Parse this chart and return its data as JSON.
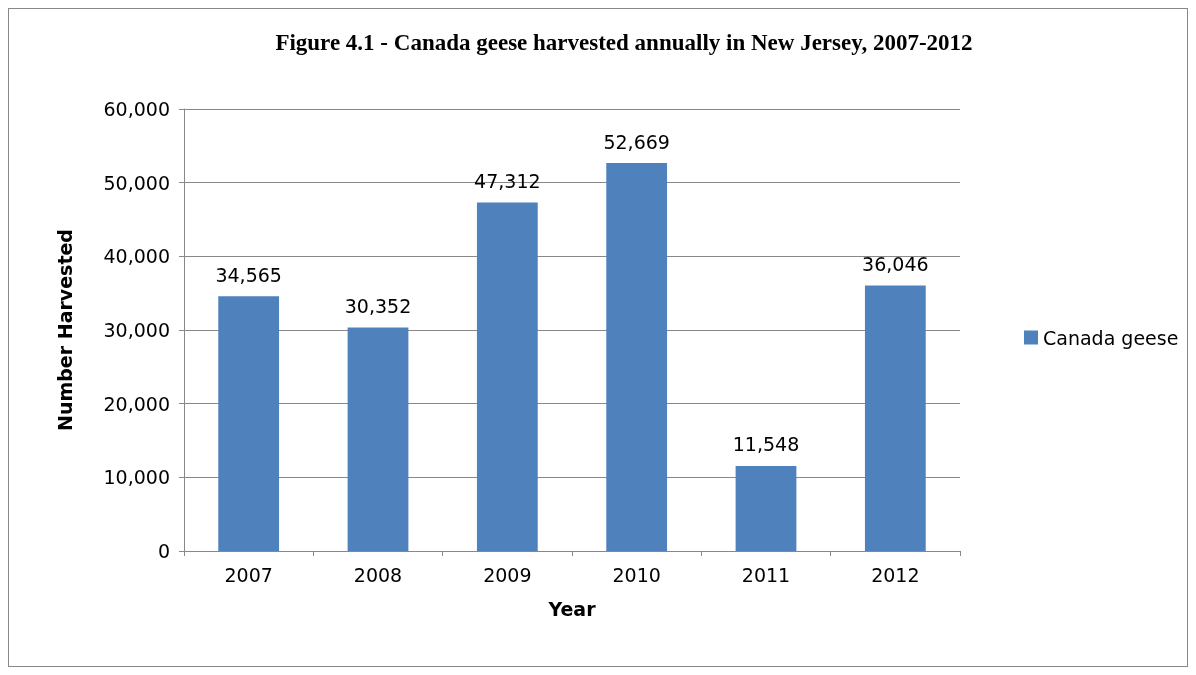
{
  "chart_data": {
    "type": "bar",
    "title": "Figure 4.1 - Canada geese harvested annually in New Jersey, 2007-2012",
    "xlabel": "Year",
    "ylabel": "Number Harvested",
    "categories": [
      "2007",
      "2008",
      "2009",
      "2010",
      "2011",
      "2012"
    ],
    "series": [
      {
        "name": "Canada geese",
        "color": "#4f81bd",
        "values": [
          34565,
          30352,
          47312,
          52669,
          11548,
          36046
        ],
        "value_labels": [
          "34,565",
          "30,352",
          "47,312",
          "52,669",
          "11,548",
          "36,046"
        ]
      }
    ],
    "ylim": [
      0,
      60000
    ],
    "yticks": [
      0,
      {
        "value": 10000,
        "label": "10,000"
      },
      {
        "value": 20000,
        "label": "20,000"
      },
      {
        "value": 30000,
        "label": "30,000"
      },
      {
        "value": 40000,
        "label": "40,000"
      },
      {
        "value": 50000,
        "label": "50,000"
      },
      {
        "value": 60000,
        "label": "60,000"
      }
    ],
    "grid": "y",
    "legend": "right"
  }
}
